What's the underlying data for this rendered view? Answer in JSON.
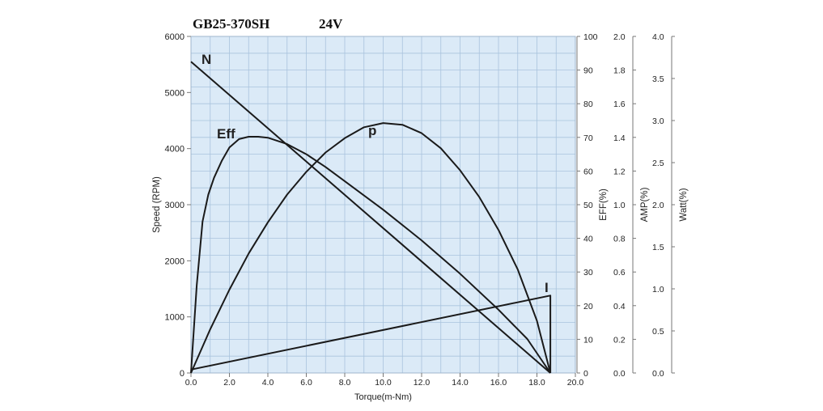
{
  "title": {
    "model": "GB25-370SH",
    "voltage": "24V"
  },
  "colors": {
    "plot_bg": "#dbeaf7",
    "grid": "#a9c3dd",
    "curve": "#1a1a1a",
    "axis": "#777777"
  },
  "chart_data": {
    "type": "line",
    "title": "GB25-370SH 24V",
    "xlabel": "Torque(m-Nm)",
    "xlim": [
      0,
      20
    ],
    "x_ticks": [
      "0.0",
      "2.0",
      "4.0",
      "6.0",
      "8.0",
      "10.0",
      "12.0",
      "14.0",
      "16.0",
      "18.0",
      "20.0"
    ],
    "axes": [
      {
        "id": "speed",
        "label": "Speed (RPM)",
        "ylim": [
          0,
          6000
        ],
        "ticks": [
          "0",
          "1000",
          "2000",
          "3000",
          "4000",
          "5000",
          "6000"
        ]
      },
      {
        "id": "eff",
        "label": "EFF(%)",
        "ylim": [
          0,
          100
        ],
        "ticks": [
          "0",
          "10",
          "20",
          "30",
          "40",
          "50",
          "60",
          "70",
          "80",
          "90",
          "100"
        ]
      },
      {
        "id": "amp",
        "label": "AMP(%)",
        "ylim": [
          0,
          2
        ],
        "ticks": [
          "0.0",
          "0.2",
          "0.4",
          "0.6",
          "0.8",
          "1.0",
          "1.2",
          "1.4",
          "1.6",
          "1.8",
          "2.0"
        ]
      },
      {
        "id": "watt",
        "label": "Watt(%)",
        "ylim": [
          0,
          4
        ],
        "ticks": [
          "0.0",
          "0.5",
          "1.0",
          "1.5",
          "2.0",
          "2.5",
          "3.0",
          "3.5",
          "4.0"
        ]
      }
    ],
    "series": [
      {
        "name": "N",
        "axis": "speed",
        "x": [
          0,
          18.7
        ],
        "y": [
          5550,
          0
        ]
      },
      {
        "name": "Eff",
        "axis": "eff",
        "x": [
          0,
          0.3,
          0.6,
          0.9,
          1.2,
          1.6,
          2.0,
          2.5,
          3.0,
          3.5,
          4.0,
          5.0,
          6.0,
          7.0,
          8.0,
          10.0,
          12.0,
          14.0,
          16.0,
          17.5,
          18.7
        ],
        "y": [
          0,
          26,
          45,
          53,
          58,
          63,
          67,
          69.5,
          70.2,
          70.2,
          69.9,
          68,
          65,
          61.2,
          57,
          48.5,
          39.4,
          29.5,
          18.8,
          10.1,
          0
        ]
      },
      {
        "name": "p",
        "axis": "watt",
        "x": [
          0,
          1,
          2,
          3,
          4,
          5,
          6,
          7,
          8,
          9,
          10,
          11,
          12,
          13,
          14,
          15,
          16,
          17,
          18,
          18.7
        ],
        "y": [
          0,
          0.52,
          0.99,
          1.42,
          1.79,
          2.12,
          2.39,
          2.62,
          2.79,
          2.92,
          2.97,
          2.95,
          2.85,
          2.67,
          2.41,
          2.09,
          1.7,
          1.23,
          0.62,
          0
        ]
      },
      {
        "name": "I",
        "axis": "amp",
        "x": [
          0,
          18.7,
          18.7
        ],
        "y": [
          0.02,
          0.46,
          0
        ]
      }
    ]
  }
}
